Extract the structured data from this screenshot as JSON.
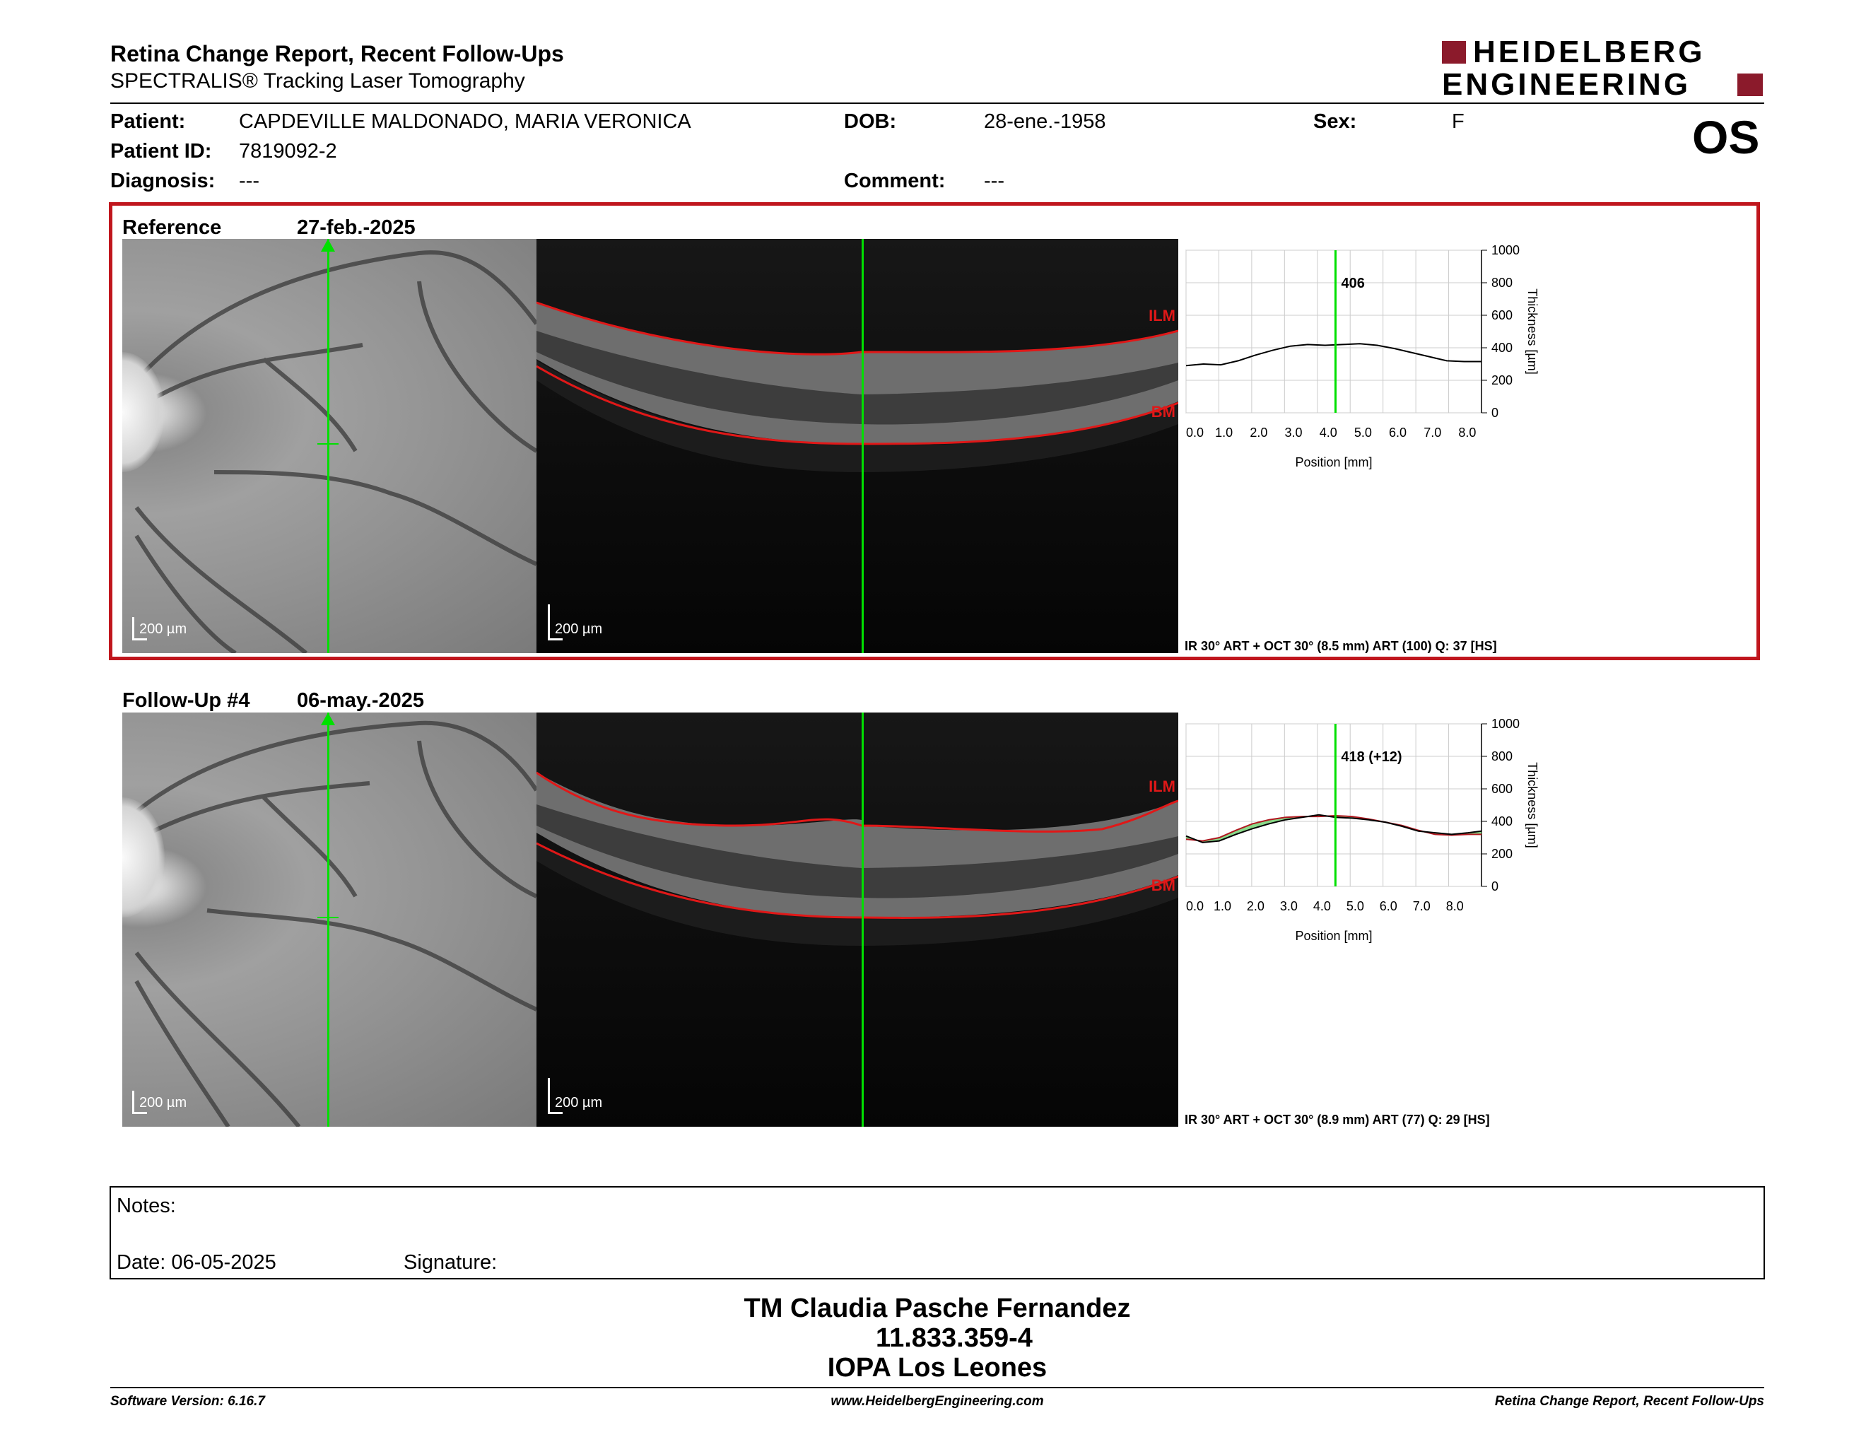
{
  "header": {
    "title": "Retina Change Report, Recent Follow-Ups",
    "subtitle": "SPECTRALIS® Tracking Laser Tomography",
    "logo_line1": "HEIDELBERG",
    "logo_line2": "ENGINEERING",
    "eye": "OS"
  },
  "patient": {
    "patient_label": "Patient:",
    "patient_value": "CAPDEVILLE MALDONADO, MARIA VERONICA",
    "id_label": "Patient ID:",
    "id_value": "7819092-2",
    "diagnosis_label": "Diagnosis:",
    "diagnosis_value": "---",
    "dob_label": "DOB:",
    "dob_value": "28-ene.-1958",
    "comment_label": "Comment:",
    "comment_value": "---",
    "sex_label": "Sex:",
    "sex_value": "F"
  },
  "colors": {
    "frame": "#c0161d",
    "green": "#00e000",
    "layer_red": "#e01818",
    "logo": "#8b1a2b"
  },
  "exams": [
    {
      "label": "Reference",
      "date": "27-feb.-2025",
      "ir_scale": "200 µm",
      "oct_scale": "200 µm",
      "ilm": "ILM",
      "bm": "BM",
      "info": "IR 30° ART + OCT 30° (8.5 mm) ART (100) Q: 37 [HS]"
    },
    {
      "label": "Follow-Up #4",
      "date": "06-may.-2025",
      "ir_scale": "200 µm",
      "oct_scale": "200 µm",
      "ilm": "ILM",
      "bm": "BM",
      "info": "IR 30° ART + OCT 30° (8.9 mm) ART (77) Q: 29 [HS]"
    }
  ],
  "chart_data": [
    {
      "type": "line",
      "xlabel": "Position [mm]",
      "ylabel": "Thickness [µm]",
      "xlim": [
        0,
        8.5
      ],
      "ylim": [
        0,
        1000
      ],
      "x_ticks": [
        "0.0",
        "1.0",
        "2.0",
        "3.0",
        "4.0",
        "5.0",
        "6.0",
        "7.0",
        "8.0"
      ],
      "y_ticks": [
        "0",
        "200",
        "400",
        "600",
        "800",
        "1000"
      ],
      "cursor_x": 4.3,
      "cursor_label": "406",
      "series": [
        {
          "x": [
            0,
            0.5,
            1,
            1.5,
            2,
            2.5,
            3,
            3.5,
            4,
            4.5,
            5,
            5.5,
            6,
            6.5,
            7,
            7.5,
            8,
            8.5
          ],
          "values": [
            290,
            300,
            295,
            320,
            355,
            385,
            410,
            420,
            415,
            420,
            425,
            415,
            395,
            370,
            345,
            320,
            315,
            315
          ]
        }
      ]
    },
    {
      "type": "line",
      "xlabel": "Position [mm]",
      "ylabel": "Thickness [µm]",
      "xlim": [
        0,
        8.9
      ],
      "ylim": [
        0,
        1000
      ],
      "x_ticks": [
        "0.0",
        "1.0",
        "2.0",
        "3.0",
        "4.0",
        "5.0",
        "6.0",
        "7.0",
        "8.0"
      ],
      "y_ticks": [
        "0",
        "200",
        "400",
        "600",
        "800",
        "1000"
      ],
      "cursor_x": 4.5,
      "cursor_label": "418 (+12)",
      "series": [
        {
          "x": [
            0,
            0.5,
            1,
            1.5,
            2,
            2.5,
            3,
            3.5,
            4,
            4.5,
            5,
            5.5,
            6,
            6.5,
            7,
            7.5,
            8,
            8.5,
            8.9
          ],
          "values": [
            310,
            270,
            280,
            320,
            355,
            385,
            410,
            425,
            440,
            425,
            420,
            410,
            395,
            370,
            340,
            330,
            320,
            330,
            340
          ]
        },
        {
          "x": [
            0,
            0.5,
            1,
            1.5,
            2,
            2.5,
            3,
            3.5,
            4,
            4.5,
            5,
            5.5,
            6,
            6.5,
            7,
            7.5,
            8,
            8.5,
            8.9
          ],
          "values": [
            290,
            280,
            300,
            345,
            385,
            410,
            425,
            430,
            430,
            435,
            430,
            415,
            395,
            375,
            345,
            320,
            315,
            320,
            320
          ]
        }
      ]
    }
  ],
  "notes": {
    "label": "Notes:",
    "date_label": "Date: 06-05-2025",
    "signature_label": "Signature:"
  },
  "stamp": {
    "line1": "TM Claudia Pasche Fernandez",
    "line2": "11.833.359-4",
    "line3": "IOPA Los Leones"
  },
  "footer": {
    "left": "Software Version: 6.16.7",
    "center": "www.HeidelbergEngineering.com",
    "right": "Retina Change Report, Recent Follow-Ups"
  }
}
